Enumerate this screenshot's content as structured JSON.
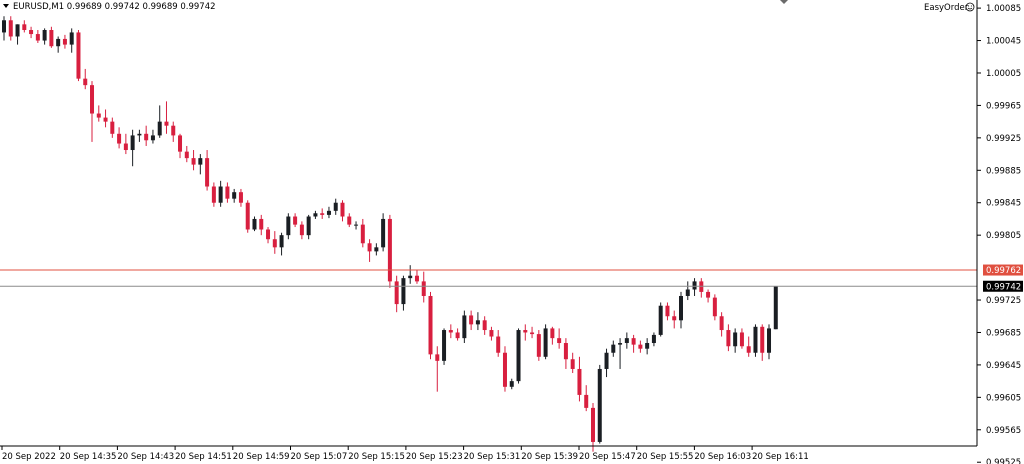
{
  "header": {
    "symbol_info": "EURUSD,M1  0.99689 0.99742 0.99689 0.99742",
    "easy_order_label": "EasyOrder"
  },
  "colors": {
    "bull": "#1a1e23",
    "bear": "#d81f3f",
    "alert_line": "#e05040",
    "bid_line": "#8c8c8c",
    "axis": "#000000"
  },
  "chart_data": {
    "type": "candlestick",
    "symbol": "EURUSD",
    "timeframe": "M1",
    "ylim": [
      0.99545,
      1.00095
    ],
    "y_ticks": [
      "1.00085",
      "1.00045",
      "1.00005",
      "0.99965",
      "0.99925",
      "0.99885",
      "0.99845",
      "0.99805",
      "0.99725",
      "0.99685",
      "0.99645",
      "0.99605",
      "0.99565",
      "0.99525"
    ],
    "x_ticks": [
      "20 Sep 2022",
      "20 Sep 14:35",
      "20 Sep 14:43",
      "20 Sep 14:51",
      "20 Sep 14:59",
      "20 Sep 15:07",
      "20 Sep 15:15",
      "20 Sep 15:23",
      "20 Sep 15:31",
      "20 Sep 15:39",
      "20 Sep 15:47",
      "20 Sep 15:55",
      "20 Sep 16:03",
      "20 Sep 16:11"
    ],
    "alert_line": {
      "value": 0.99762,
      "label": "0.99762"
    },
    "bid_line": {
      "value": 0.99742,
      "label": "0.99742"
    },
    "candles": [
      {
        "o": 1.00055,
        "h": 1.00075,
        "l": 1.00045,
        "c": 1.0007
      },
      {
        "o": 1.0007,
        "h": 1.00075,
        "l": 1.00045,
        "c": 1.0005
      },
      {
        "o": 1.0005,
        "h": 1.00065,
        "l": 1.0004,
        "c": 1.00065
      },
      {
        "o": 1.00065,
        "h": 1.0007,
        "l": 1.00055,
        "c": 1.00058
      },
      {
        "o": 1.00058,
        "h": 1.00062,
        "l": 1.00048,
        "c": 1.00053
      },
      {
        "o": 1.00053,
        "h": 1.00058,
        "l": 1.00042,
        "c": 1.00045
      },
      {
        "o": 1.00045,
        "h": 1.0006,
        "l": 1.0004,
        "c": 1.00058
      },
      {
        "o": 1.00058,
        "h": 1.00062,
        "l": 1.00036,
        "c": 1.00038
      },
      {
        "o": 1.00038,
        "h": 1.0005,
        "l": 1.0003,
        "c": 1.00047
      },
      {
        "o": 1.00047,
        "h": 1.00052,
        "l": 1.00035,
        "c": 1.0004
      },
      {
        "o": 1.0004,
        "h": 1.0006,
        "l": 1.0003,
        "c": 1.00055
      },
      {
        "o": 1.00055,
        "h": 1.00058,
        "l": 0.99995,
        "c": 0.99998
      },
      {
        "o": 0.99998,
        "h": 1.0001,
        "l": 0.99985,
        "c": 0.9999
      },
      {
        "o": 0.9999,
        "h": 0.99995,
        "l": 0.9992,
        "c": 0.99955
      },
      {
        "o": 0.99955,
        "h": 0.99965,
        "l": 0.99945,
        "c": 0.9995
      },
      {
        "o": 0.9995,
        "h": 0.9996,
        "l": 0.99938,
        "c": 0.99945
      },
      {
        "o": 0.99945,
        "h": 0.9995,
        "l": 0.99925,
        "c": 0.9993
      },
      {
        "o": 0.9993,
        "h": 0.99938,
        "l": 0.99912,
        "c": 0.99918
      },
      {
        "o": 0.99918,
        "h": 0.9993,
        "l": 0.99905,
        "c": 0.9991
      },
      {
        "o": 0.9991,
        "h": 0.99935,
        "l": 0.9989,
        "c": 0.99928
      },
      {
        "o": 0.99928,
        "h": 0.99935,
        "l": 0.9992,
        "c": 0.9993
      },
      {
        "o": 0.9993,
        "h": 0.9994,
        "l": 0.99915,
        "c": 0.99922
      },
      {
        "o": 0.99922,
        "h": 0.99935,
        "l": 0.99918,
        "c": 0.99928
      },
      {
        "o": 0.99928,
        "h": 0.99965,
        "l": 0.99925,
        "c": 0.99945
      },
      {
        "o": 0.99945,
        "h": 0.9997,
        "l": 0.9993,
        "c": 0.9994
      },
      {
        "o": 0.9994,
        "h": 0.99945,
        "l": 0.9992,
        "c": 0.99928
      },
      {
        "o": 0.99928,
        "h": 0.9993,
        "l": 0.999,
        "c": 0.99908
      },
      {
        "o": 0.99908,
        "h": 0.99915,
        "l": 0.99895,
        "c": 0.999
      },
      {
        "o": 0.999,
        "h": 0.9991,
        "l": 0.99885,
        "c": 0.99892
      },
      {
        "o": 0.99892,
        "h": 0.99905,
        "l": 0.9988,
        "c": 0.999
      },
      {
        "o": 0.999,
        "h": 0.9991,
        "l": 0.9986,
        "c": 0.99865
      },
      {
        "o": 0.99865,
        "h": 0.9987,
        "l": 0.9984,
        "c": 0.99845
      },
      {
        "o": 0.99845,
        "h": 0.99872,
        "l": 0.9984,
        "c": 0.99865
      },
      {
        "o": 0.99865,
        "h": 0.9987,
        "l": 0.99845,
        "c": 0.9985
      },
      {
        "o": 0.9985,
        "h": 0.99862,
        "l": 0.99845,
        "c": 0.99858
      },
      {
        "o": 0.99858,
        "h": 0.99862,
        "l": 0.9984,
        "c": 0.99845
      },
      {
        "o": 0.99845,
        "h": 0.99848,
        "l": 0.99808,
        "c": 0.99812
      },
      {
        "o": 0.99812,
        "h": 0.99828,
        "l": 0.9981,
        "c": 0.99825
      },
      {
        "o": 0.99825,
        "h": 0.9983,
        "l": 0.99805,
        "c": 0.99812
      },
      {
        "o": 0.99812,
        "h": 0.99815,
        "l": 0.99795,
        "c": 0.998
      },
      {
        "o": 0.998,
        "h": 0.9981,
        "l": 0.99782,
        "c": 0.9979
      },
      {
        "o": 0.9979,
        "h": 0.99808,
        "l": 0.9978,
        "c": 0.99805
      },
      {
        "o": 0.99805,
        "h": 0.99832,
        "l": 0.998,
        "c": 0.99828
      },
      {
        "o": 0.99828,
        "h": 0.99832,
        "l": 0.99815,
        "c": 0.99818
      },
      {
        "o": 0.99818,
        "h": 0.99822,
        "l": 0.998,
        "c": 0.99805
      },
      {
        "o": 0.99805,
        "h": 0.9983,
        "l": 0.998,
        "c": 0.99828
      },
      {
        "o": 0.99828,
        "h": 0.99835,
        "l": 0.99825,
        "c": 0.99832
      },
      {
        "o": 0.99832,
        "h": 0.99838,
        "l": 0.99825,
        "c": 0.9983
      },
      {
        "o": 0.9983,
        "h": 0.9984,
        "l": 0.99826,
        "c": 0.99835
      },
      {
        "o": 0.99835,
        "h": 0.9985,
        "l": 0.9983,
        "c": 0.99845
      },
      {
        "o": 0.99845,
        "h": 0.99848,
        "l": 0.99822,
        "c": 0.99828
      },
      {
        "o": 0.99828,
        "h": 0.99832,
        "l": 0.99815,
        "c": 0.99818
      },
      {
        "o": 0.99818,
        "h": 0.99822,
        "l": 0.99812,
        "c": 0.99818
      },
      {
        "o": 0.99818,
        "h": 0.99825,
        "l": 0.9979,
        "c": 0.99795
      },
      {
        "o": 0.99795,
        "h": 0.998,
        "l": 0.99772,
        "c": 0.99785
      },
      {
        "o": 0.99785,
        "h": 0.99795,
        "l": 0.9978,
        "c": 0.9979
      },
      {
        "o": 0.9979,
        "h": 0.99832,
        "l": 0.99785,
        "c": 0.99825
      },
      {
        "o": 0.99825,
        "h": 0.9983,
        "l": 0.9974,
        "c": 0.99748
      },
      {
        "o": 0.99748,
        "h": 0.99755,
        "l": 0.9971,
        "c": 0.9972
      },
      {
        "o": 0.9972,
        "h": 0.99755,
        "l": 0.99712,
        "c": 0.99752
      },
      {
        "o": 0.99752,
        "h": 0.99768,
        "l": 0.99745,
        "c": 0.99755
      },
      {
        "o": 0.99755,
        "h": 0.99762,
        "l": 0.99745,
        "c": 0.99748
      },
      {
        "o": 0.99748,
        "h": 0.9976,
        "l": 0.99722,
        "c": 0.9973
      },
      {
        "o": 0.9973,
        "h": 0.99735,
        "l": 0.99652,
        "c": 0.99658
      },
      {
        "o": 0.99658,
        "h": 0.99668,
        "l": 0.99612,
        "c": 0.9965
      },
      {
        "o": 0.9965,
        "h": 0.9969,
        "l": 0.99645,
        "c": 0.99688
      },
      {
        "o": 0.99688,
        "h": 0.99695,
        "l": 0.99678,
        "c": 0.99685
      },
      {
        "o": 0.99685,
        "h": 0.9969,
        "l": 0.99675,
        "c": 0.99678
      },
      {
        "o": 0.99678,
        "h": 0.99712,
        "l": 0.99672,
        "c": 0.99706
      },
      {
        "o": 0.99706,
        "h": 0.99712,
        "l": 0.99688,
        "c": 0.99695
      },
      {
        "o": 0.99695,
        "h": 0.9971,
        "l": 0.99688,
        "c": 0.997
      },
      {
        "o": 0.997,
        "h": 0.99705,
        "l": 0.99682,
        "c": 0.99688
      },
      {
        "o": 0.99688,
        "h": 0.99692,
        "l": 0.99675,
        "c": 0.9968
      },
      {
        "o": 0.9968,
        "h": 0.99688,
        "l": 0.99655,
        "c": 0.9966
      },
      {
        "o": 0.9966,
        "h": 0.99668,
        "l": 0.99612,
        "c": 0.99618
      },
      {
        "o": 0.99618,
        "h": 0.99628,
        "l": 0.99615,
        "c": 0.99625
      },
      {
        "o": 0.99625,
        "h": 0.9969,
        "l": 0.99622,
        "c": 0.99688
      },
      {
        "o": 0.99688,
        "h": 0.99695,
        "l": 0.99675,
        "c": 0.99685
      },
      {
        "o": 0.99685,
        "h": 0.99692,
        "l": 0.99678,
        "c": 0.99683
      },
      {
        "o": 0.99683,
        "h": 0.99688,
        "l": 0.9965,
        "c": 0.99655
      },
      {
        "o": 0.99655,
        "h": 0.99695,
        "l": 0.99652,
        "c": 0.9969
      },
      {
        "o": 0.9969,
        "h": 0.99692,
        "l": 0.9967,
        "c": 0.99678
      },
      {
        "o": 0.99678,
        "h": 0.9969,
        "l": 0.99665,
        "c": 0.99672
      },
      {
        "o": 0.99672,
        "h": 0.99678,
        "l": 0.9964,
        "c": 0.99652
      },
      {
        "o": 0.99652,
        "h": 0.9966,
        "l": 0.99635,
        "c": 0.9964
      },
      {
        "o": 0.9964,
        "h": 0.99655,
        "l": 0.996,
        "c": 0.99608
      },
      {
        "o": 0.99608,
        "h": 0.9962,
        "l": 0.99588,
        "c": 0.99592
      },
      {
        "o": 0.99592,
        "h": 0.99598,
        "l": 0.99538,
        "c": 0.9955
      },
      {
        "o": 0.9955,
        "h": 0.99645,
        "l": 0.99548,
        "c": 0.9964
      },
      {
        "o": 0.9964,
        "h": 0.99665,
        "l": 0.9963,
        "c": 0.9966
      },
      {
        "o": 0.9966,
        "h": 0.99675,
        "l": 0.99655,
        "c": 0.9967
      },
      {
        "o": 0.9967,
        "h": 0.99678,
        "l": 0.9964,
        "c": 0.99672
      },
      {
        "o": 0.99672,
        "h": 0.99685,
        "l": 0.99665,
        "c": 0.99678
      },
      {
        "o": 0.99678,
        "h": 0.99682,
        "l": 0.9966,
        "c": 0.9967
      },
      {
        "o": 0.9967,
        "h": 0.99675,
        "l": 0.9966,
        "c": 0.99665
      },
      {
        "o": 0.99665,
        "h": 0.99678,
        "l": 0.99658,
        "c": 0.99672
      },
      {
        "o": 0.99672,
        "h": 0.99685,
        "l": 0.99668,
        "c": 0.99682
      },
      {
        "o": 0.99682,
        "h": 0.99722,
        "l": 0.9968,
        "c": 0.99718
      },
      {
        "o": 0.99718,
        "h": 0.99722,
        "l": 0.997,
        "c": 0.99705
      },
      {
        "o": 0.99705,
        "h": 0.99712,
        "l": 0.9969,
        "c": 0.997
      },
      {
        "o": 0.997,
        "h": 0.99735,
        "l": 0.9969,
        "c": 0.9973
      },
      {
        "o": 0.9973,
        "h": 0.99748,
        "l": 0.99725,
        "c": 0.99738
      },
      {
        "o": 0.99738,
        "h": 0.99752,
        "l": 0.9973,
        "c": 0.99748
      },
      {
        "o": 0.99748,
        "h": 0.99752,
        "l": 0.99728,
        "c": 0.99735
      },
      {
        "o": 0.99735,
        "h": 0.99738,
        "l": 0.99722,
        "c": 0.99728
      },
      {
        "o": 0.99728,
        "h": 0.99732,
        "l": 0.997,
        "c": 0.99705
      },
      {
        "o": 0.99705,
        "h": 0.9971,
        "l": 0.9968,
        "c": 0.99688
      },
      {
        "o": 0.99688,
        "h": 0.99695,
        "l": 0.99662,
        "c": 0.99668
      },
      {
        "o": 0.99668,
        "h": 0.9969,
        "l": 0.9966,
        "c": 0.99685
      },
      {
        "o": 0.99685,
        "h": 0.9969,
        "l": 0.99665,
        "c": 0.99668
      },
      {
        "o": 0.99668,
        "h": 0.9968,
        "l": 0.99655,
        "c": 0.9966
      },
      {
        "o": 0.9966,
        "h": 0.99695,
        "l": 0.99655,
        "c": 0.99692
      },
      {
        "o": 0.99692,
        "h": 0.99695,
        "l": 0.9965,
        "c": 0.9966
      },
      {
        "o": 0.9966,
        "h": 0.99695,
        "l": 0.99652,
        "c": 0.9969
      },
      {
        "o": 0.99689,
        "h": 0.99742,
        "l": 0.99689,
        "c": 0.99742
      }
    ]
  }
}
